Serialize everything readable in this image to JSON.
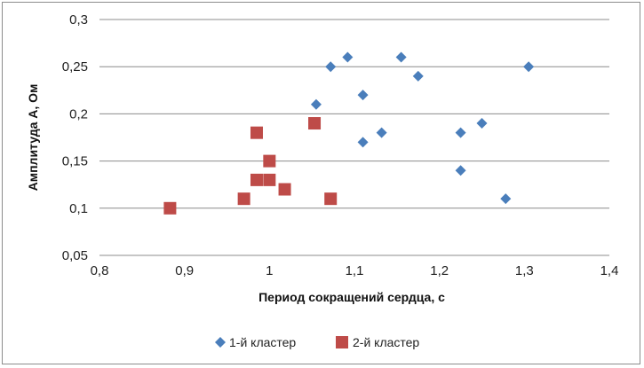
{
  "chart_data": {
    "type": "scatter",
    "title": "",
    "xlabel": "Период сокращений сердца, с",
    "ylabel": "Амплитуда А, Ом",
    "xlim": [
      0.8,
      1.4
    ],
    "ylim": [
      0.05,
      0.3
    ],
    "x_ticks": [
      "0,8",
      "0,9",
      "1",
      "1,1",
      "1,2",
      "1,3",
      "1,4"
    ],
    "x_tick_values": [
      0.8,
      0.9,
      1.0,
      1.1,
      1.2,
      1.3,
      1.4
    ],
    "y_ticks": [
      "0,05",
      "0,1",
      "0,15",
      "0,2",
      "0,25",
      "0,3"
    ],
    "y_tick_values": [
      0.05,
      0.1,
      0.15,
      0.2,
      0.25,
      0.3
    ],
    "grid": "horizontal",
    "legend_position": "bottom",
    "series": [
      {
        "name": "1-й кластер",
        "marker": "diamond",
        "color": "#4a7ebb",
        "points": [
          [
            1.055,
            0.21
          ],
          [
            1.072,
            0.25
          ],
          [
            1.092,
            0.26
          ],
          [
            1.11,
            0.22
          ],
          [
            1.11,
            0.17
          ],
          [
            1.132,
            0.18
          ],
          [
            1.155,
            0.26
          ],
          [
            1.175,
            0.24
          ],
          [
            1.225,
            0.18
          ],
          [
            1.225,
            0.14
          ],
          [
            1.25,
            0.19
          ],
          [
            1.278,
            0.11
          ],
          [
            1.305,
            0.25
          ]
        ]
      },
      {
        "name": "2-й кластер",
        "marker": "square",
        "color": "#be4b48",
        "points": [
          [
            0.883,
            0.1
          ],
          [
            0.97,
            0.11
          ],
          [
            0.985,
            0.18
          ],
          [
            0.985,
            0.13
          ],
          [
            1.0,
            0.15
          ],
          [
            1.0,
            0.13
          ],
          [
            1.018,
            0.12
          ],
          [
            1.053,
            0.19
          ],
          [
            1.072,
            0.11
          ]
        ]
      }
    ]
  }
}
